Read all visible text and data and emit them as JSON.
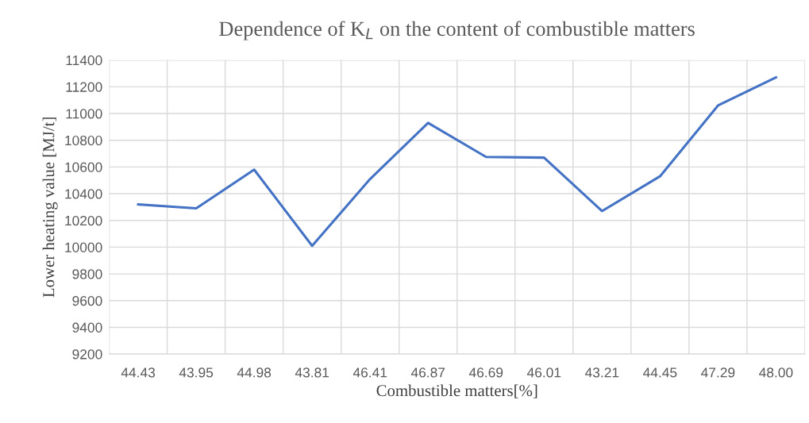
{
  "chart_data": {
    "type": "line",
    "title": "Dependence of K$_{L}$ on the content of combustible matters",
    "xlabel": "Combustible matters[%]",
    "ylabel": "Lower heating value [MJ/t]",
    "categories": [
      "44.43",
      "43.95",
      "44.98",
      "43.81",
      "46.41",
      "46.87",
      "46.69",
      "46.01",
      "43.21",
      "44.45",
      "47.29",
      "48.00"
    ],
    "series": [
      {
        "color": "#4472c4",
        "values": [
          10320,
          10290,
          10580,
          10010,
          10510,
          10930,
          10675,
          10670,
          10270,
          10530,
          11060,
          11270
        ]
      }
    ],
    "ylim": [
      9200,
      11400
    ],
    "yticks": [
      9200,
      9400,
      9600,
      9800,
      10000,
      10200,
      10400,
      10600,
      10800,
      11000,
      11200,
      11400
    ],
    "grid": true,
    "marker": "none",
    "line_style": "solid",
    "legend": false
  }
}
